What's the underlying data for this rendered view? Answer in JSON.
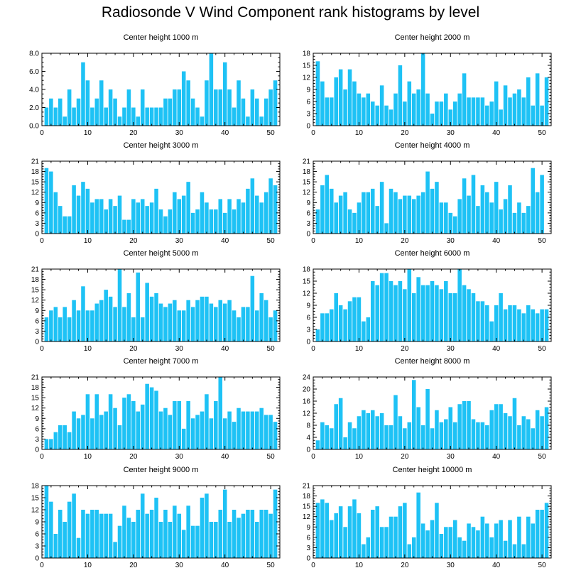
{
  "title": "Radiosonde V Wind Component rank histograms by level",
  "colors": {
    "bar": "#1ec2f5",
    "axis": "#000000",
    "background": "#ffffff"
  },
  "chart_data": [
    {
      "type": "bar",
      "title": "Center height 1000 m",
      "xlabel": "",
      "ylabel": "",
      "xlim": [
        0,
        52
      ],
      "ylim": [
        0,
        8
      ],
      "xticks": [
        "0",
        "10",
        "20",
        "30",
        "40",
        "50"
      ],
      "yticks": [
        "0.0",
        "2.0",
        "4.0",
        "6.0",
        "8.0"
      ],
      "x": [
        1,
        2,
        3,
        4,
        5,
        6,
        7,
        8,
        9,
        10,
        11,
        12,
        13,
        14,
        15,
        16,
        17,
        18,
        19,
        20,
        21,
        22,
        23,
        24,
        25,
        26,
        27,
        28,
        29,
        30,
        31,
        32,
        33,
        34,
        35,
        36,
        37,
        38,
        39,
        40,
        41,
        42,
        43,
        44,
        45,
        46,
        47,
        48,
        49,
        50,
        51
      ],
      "values": [
        2,
        3,
        2,
        3,
        1,
        4,
        2,
        3,
        7,
        5,
        2,
        3,
        5,
        2,
        4,
        3,
        1,
        2,
        4,
        2,
        1,
        4,
        2,
        2,
        2,
        2,
        3,
        3,
        4,
        4,
        6,
        5,
        3,
        2,
        1,
        5,
        8,
        4,
        4,
        7,
        4,
        2,
        5,
        3,
        1,
        4,
        3,
        1,
        3,
        4,
        5
      ]
    },
    {
      "type": "bar",
      "title": "Center height 2000 m",
      "xlabel": "",
      "ylabel": "",
      "xlim": [
        0,
        52
      ],
      "ylim": [
        0,
        18
      ],
      "xticks": [
        "0",
        "10",
        "20",
        "30",
        "40",
        "50"
      ],
      "yticks": [
        "0",
        "3",
        "6",
        "9",
        "12",
        "15",
        "18"
      ],
      "x": [
        1,
        2,
        3,
        4,
        5,
        6,
        7,
        8,
        9,
        10,
        11,
        12,
        13,
        14,
        15,
        16,
        17,
        18,
        19,
        20,
        21,
        22,
        23,
        24,
        25,
        26,
        27,
        28,
        29,
        30,
        31,
        32,
        33,
        34,
        35,
        36,
        37,
        38,
        39,
        40,
        41,
        42,
        43,
        44,
        45,
        46,
        47,
        48,
        49,
        50,
        51
      ],
      "values": [
        16,
        11,
        7,
        7,
        12,
        14,
        9,
        14,
        11,
        8,
        7,
        8,
        6,
        5,
        10,
        5,
        4,
        8,
        15,
        6,
        11,
        8,
        9,
        18,
        8,
        3,
        6,
        6,
        8,
        4,
        6,
        8,
        13,
        7,
        7,
        7,
        7,
        5,
        6,
        11,
        4,
        10,
        7,
        8,
        9,
        7,
        12,
        5,
        13,
        5,
        12
      ]
    },
    {
      "type": "bar",
      "title": "Center height 3000 m",
      "xlabel": "",
      "ylabel": "",
      "xlim": [
        0,
        52
      ],
      "ylim": [
        0,
        21
      ],
      "xticks": [
        "0",
        "10",
        "20",
        "30",
        "40",
        "50"
      ],
      "yticks": [
        "0",
        "3",
        "6",
        "9",
        "12",
        "15",
        "18",
        "21"
      ],
      "x": [
        1,
        2,
        3,
        4,
        5,
        6,
        7,
        8,
        9,
        10,
        11,
        12,
        13,
        14,
        15,
        16,
        17,
        18,
        19,
        20,
        21,
        22,
        23,
        24,
        25,
        26,
        27,
        28,
        29,
        30,
        31,
        32,
        33,
        34,
        35,
        36,
        37,
        38,
        39,
        40,
        41,
        42,
        43,
        44,
        45,
        46,
        47,
        48,
        49,
        50,
        51
      ],
      "values": [
        19,
        18,
        12,
        8,
        5,
        5,
        14,
        11,
        15,
        13,
        9,
        10,
        10,
        7,
        10,
        8,
        11,
        4,
        4,
        10,
        9,
        10,
        8,
        9,
        13,
        7,
        5,
        7,
        12,
        10,
        11,
        15,
        6,
        7,
        12,
        9,
        7,
        7,
        10,
        6,
        10,
        7,
        10,
        9,
        13,
        16,
        11,
        9,
        12,
        16,
        14
      ]
    },
    {
      "type": "bar",
      "title": "Center height 4000 m",
      "xlabel": "",
      "ylabel": "",
      "xlim": [
        0,
        52
      ],
      "ylim": [
        0,
        21
      ],
      "xticks": [
        "0",
        "10",
        "20",
        "30",
        "40",
        "50"
      ],
      "yticks": [
        "0",
        "3",
        "6",
        "9",
        "12",
        "15",
        "18",
        "21"
      ],
      "x": [
        1,
        2,
        3,
        4,
        5,
        6,
        7,
        8,
        9,
        10,
        11,
        12,
        13,
        14,
        15,
        16,
        17,
        18,
        19,
        20,
        21,
        22,
        23,
        24,
        25,
        26,
        27,
        28,
        29,
        30,
        31,
        32,
        33,
        34,
        35,
        36,
        37,
        38,
        39,
        40,
        41,
        42,
        43,
        44,
        45,
        46,
        47,
        48,
        49,
        50,
        51
      ],
      "values": [
        7,
        14,
        17,
        13,
        9,
        11,
        12,
        7,
        6,
        9,
        12,
        12,
        13,
        8,
        15,
        3,
        13,
        12,
        10,
        11,
        11,
        10,
        11,
        12,
        18,
        13,
        15,
        9,
        9,
        6,
        5,
        10,
        16,
        11,
        17,
        8,
        14,
        12,
        9,
        15,
        7,
        10,
        14,
        6,
        9,
        6,
        8,
        19,
        12,
        17,
        0
      ]
    },
    {
      "type": "bar",
      "title": "Center height 5000 m",
      "xlabel": "",
      "ylabel": "",
      "xlim": [
        0,
        52
      ],
      "ylim": [
        0,
        21
      ],
      "xticks": [
        "0",
        "10",
        "20",
        "30",
        "40",
        "50"
      ],
      "yticks": [
        "0",
        "3",
        "6",
        "9",
        "12",
        "15",
        "18",
        "21"
      ],
      "x": [
        1,
        2,
        3,
        4,
        5,
        6,
        7,
        8,
        9,
        10,
        11,
        12,
        13,
        14,
        15,
        16,
        17,
        18,
        19,
        20,
        21,
        22,
        23,
        24,
        25,
        26,
        27,
        28,
        29,
        30,
        31,
        32,
        33,
        34,
        35,
        36,
        37,
        38,
        39,
        40,
        41,
        42,
        43,
        44,
        45,
        46,
        47,
        48,
        49,
        50,
        51
      ],
      "values": [
        7,
        9,
        10,
        7,
        10,
        7,
        12,
        9,
        16,
        9,
        9,
        11,
        12,
        15,
        13,
        10,
        21,
        10,
        14,
        7,
        20,
        7,
        17,
        13,
        14,
        11,
        10,
        11,
        12,
        9,
        9,
        12,
        10,
        12,
        13,
        13,
        11,
        10,
        12,
        11,
        12,
        9,
        7,
        10,
        10,
        19,
        9,
        14,
        12,
        7,
        9
      ]
    },
    {
      "type": "bar",
      "title": "Center height 6000 m",
      "xlabel": "",
      "ylabel": "",
      "xlim": [
        0,
        52
      ],
      "ylim": [
        0,
        18
      ],
      "xticks": [
        "0",
        "10",
        "20",
        "30",
        "40",
        "50"
      ],
      "yticks": [
        "0",
        "3",
        "6",
        "9",
        "12",
        "15",
        "18"
      ],
      "x": [
        1,
        2,
        3,
        4,
        5,
        6,
        7,
        8,
        9,
        10,
        11,
        12,
        13,
        14,
        15,
        16,
        17,
        18,
        19,
        20,
        21,
        22,
        23,
        24,
        25,
        26,
        27,
        28,
        29,
        30,
        31,
        32,
        33,
        34,
        35,
        36,
        37,
        38,
        39,
        40,
        41,
        42,
        43,
        44,
        45,
        46,
        47,
        48,
        49,
        50,
        51
      ],
      "values": [
        3,
        7,
        7,
        8,
        12,
        9,
        8,
        10,
        11,
        11,
        5,
        6,
        15,
        14,
        17,
        17,
        15,
        14,
        15,
        13,
        18,
        12,
        16,
        14,
        14,
        15,
        14,
        13,
        15,
        12,
        12,
        18,
        14,
        13,
        12,
        10,
        10,
        9,
        5,
        9,
        12,
        8,
        9,
        9,
        8,
        7,
        9,
        8,
        7,
        8,
        8
      ]
    },
    {
      "type": "bar",
      "title": "Center height 7000 m",
      "xlabel": "",
      "ylabel": "",
      "xlim": [
        0,
        52
      ],
      "ylim": [
        0,
        21
      ],
      "xticks": [
        "0",
        "10",
        "20",
        "30",
        "40",
        "50"
      ],
      "yticks": [
        "0",
        "3",
        "6",
        "9",
        "12",
        "15",
        "18",
        "21"
      ],
      "x": [
        1,
        2,
        3,
        4,
        5,
        6,
        7,
        8,
        9,
        10,
        11,
        12,
        13,
        14,
        15,
        16,
        17,
        18,
        19,
        20,
        21,
        22,
        23,
        24,
        25,
        26,
        27,
        28,
        29,
        30,
        31,
        32,
        33,
        34,
        35,
        36,
        37,
        38,
        39,
        40,
        41,
        42,
        43,
        44,
        45,
        46,
        47,
        48,
        49,
        50,
        51
      ],
      "values": [
        3,
        3,
        5,
        7,
        7,
        5,
        11,
        9,
        10,
        16,
        9,
        16,
        10,
        11,
        16,
        12,
        7,
        15,
        16,
        14,
        11,
        13,
        19,
        18,
        17,
        11,
        12,
        10,
        14,
        14,
        6,
        14,
        9,
        10,
        11,
        16,
        9,
        14,
        21,
        9,
        11,
        8,
        12,
        11,
        11,
        11,
        11,
        12,
        10,
        10,
        8
      ]
    },
    {
      "type": "bar",
      "title": "Center height 8000 m",
      "xlabel": "",
      "ylabel": "",
      "xlim": [
        0,
        52
      ],
      "ylim": [
        0,
        24
      ],
      "xticks": [
        "0",
        "10",
        "20",
        "30",
        "40",
        "50"
      ],
      "yticks": [
        "0",
        "4",
        "8",
        "12",
        "16",
        "20",
        "24"
      ],
      "x": [
        1,
        2,
        3,
        4,
        5,
        6,
        7,
        8,
        9,
        10,
        11,
        12,
        13,
        14,
        15,
        16,
        17,
        18,
        19,
        20,
        21,
        22,
        23,
        24,
        25,
        26,
        27,
        28,
        29,
        30,
        31,
        32,
        33,
        34,
        35,
        36,
        37,
        38,
        39,
        40,
        41,
        42,
        43,
        44,
        45,
        46,
        47,
        48,
        49,
        50,
        51
      ],
      "values": [
        3,
        9,
        8,
        7,
        15,
        17,
        4,
        9,
        7,
        11,
        13,
        12,
        13,
        11,
        12,
        8,
        8,
        18,
        11,
        7,
        9,
        23,
        14,
        8,
        20,
        7,
        13,
        9,
        10,
        14,
        9,
        15,
        16,
        16,
        10,
        9,
        9,
        8,
        13,
        15,
        15,
        12,
        11,
        17,
        8,
        11,
        10,
        7,
        13,
        11,
        14
      ]
    },
    {
      "type": "bar",
      "title": "Center height 9000 m",
      "xlabel": "",
      "ylabel": "",
      "xlim": [
        0,
        52
      ],
      "ylim": [
        0,
        18
      ],
      "xticks": [
        "0",
        "10",
        "20",
        "30",
        "40",
        "50"
      ],
      "yticks": [
        "0",
        "3",
        "6",
        "9",
        "12",
        "15",
        "18"
      ],
      "x": [
        1,
        2,
        3,
        4,
        5,
        6,
        7,
        8,
        9,
        10,
        11,
        12,
        13,
        14,
        15,
        16,
        17,
        18,
        19,
        20,
        21,
        22,
        23,
        24,
        25,
        26,
        27,
        28,
        29,
        30,
        31,
        32,
        33,
        34,
        35,
        36,
        37,
        38,
        39,
        40,
        41,
        42,
        43,
        44,
        45,
        46,
        47,
        48,
        49,
        50,
        51
      ],
      "values": [
        18,
        14,
        6,
        12,
        9,
        14,
        16,
        5,
        12,
        11,
        12,
        12,
        11,
        11,
        11,
        4,
        8,
        13,
        10,
        9,
        12,
        16,
        11,
        12,
        15,
        9,
        12,
        9,
        13,
        11,
        7,
        13,
        8,
        8,
        15,
        16,
        9,
        9,
        12,
        17,
        9,
        12,
        10,
        11,
        12,
        12,
        9,
        12,
        12,
        11,
        17
      ]
    },
    {
      "type": "bar",
      "title": "Center height 10000 m",
      "xlabel": "",
      "ylabel": "",
      "xlim": [
        0,
        52
      ],
      "ylim": [
        0,
        21
      ],
      "xticks": [
        "0",
        "10",
        "20",
        "30",
        "40",
        "50"
      ],
      "yticks": [
        "0",
        "3",
        "6",
        "9",
        "12",
        "15",
        "18",
        "21"
      ],
      "x": [
        1,
        2,
        3,
        4,
        5,
        6,
        7,
        8,
        9,
        10,
        11,
        12,
        13,
        14,
        15,
        16,
        17,
        18,
        19,
        20,
        21,
        22,
        23,
        24,
        25,
        26,
        27,
        28,
        29,
        30,
        31,
        32,
        33,
        34,
        35,
        36,
        37,
        38,
        39,
        40,
        41,
        42,
        43,
        44,
        45,
        46,
        47,
        48,
        49,
        50,
        51
      ],
      "values": [
        16,
        17,
        16,
        11,
        13,
        15,
        9,
        15,
        17,
        13,
        4,
        6,
        14,
        15,
        9,
        9,
        12,
        12,
        15,
        16,
        4,
        6,
        19,
        10,
        8,
        11,
        16,
        7,
        9,
        9,
        11,
        6,
        5,
        10,
        9,
        8,
        12,
        10,
        6,
        10,
        11,
        5,
        11,
        4,
        12,
        4,
        12,
        10,
        14,
        14,
        16
      ]
    }
  ]
}
